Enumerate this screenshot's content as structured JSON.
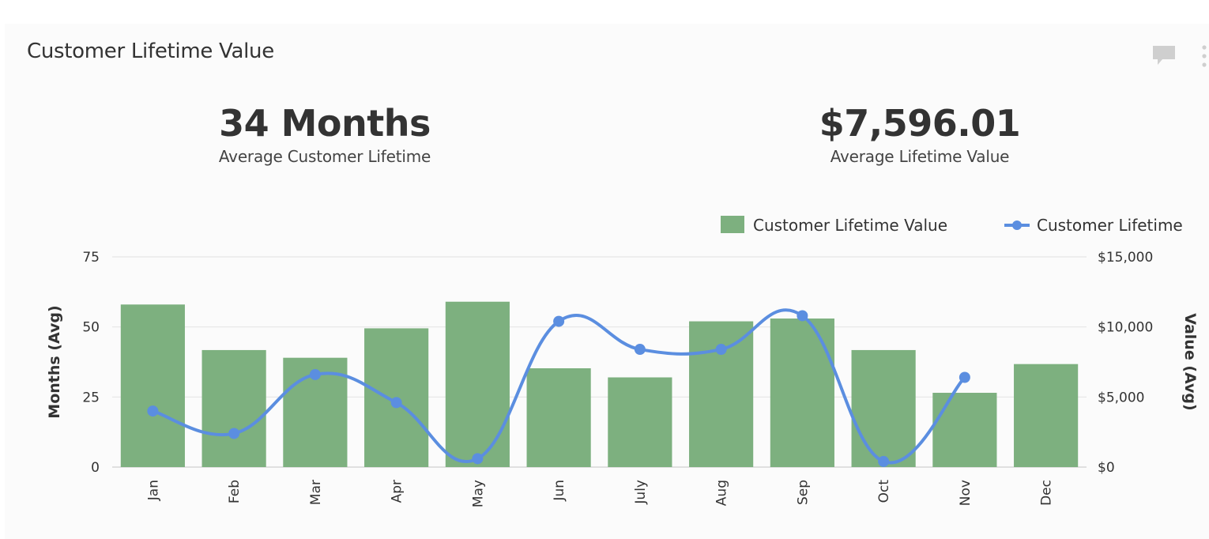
{
  "card": {
    "title": "Customer Lifetime Value",
    "icons": {
      "comment": "comment-icon",
      "more": "more-vertical-icon"
    }
  },
  "kpis": [
    {
      "value": "34 Months",
      "label": "Average Customer Lifetime"
    },
    {
      "value": "$7,596.01",
      "label": "Average Lifetime Value"
    }
  ],
  "colors": {
    "bar": "#7db07f",
    "line": "#5b8ee0",
    "grid": "#e6e6e6",
    "text": "#333333"
  },
  "chart_data": {
    "type": "bar",
    "categories": [
      "Jan",
      "Feb",
      "Mar",
      "Apr",
      "May",
      "Jun",
      "July",
      "Aug",
      "Sep",
      "Oct",
      "Nov",
      "Dec"
    ],
    "left_axis": {
      "label": "Months (Avg)",
      "ticks": [
        0,
        25,
        50,
        75
      ],
      "tick_labels": [
        "0",
        "25",
        "50",
        "75"
      ],
      "range": [
        0,
        75
      ]
    },
    "right_axis": {
      "label": "Value (Avg)",
      "ticks": [
        0,
        5000,
        10000,
        15000
      ],
      "tick_labels": [
        "$0",
        "$5,000",
        "$10,000",
        "$15,000"
      ],
      "range": [
        0,
        15000
      ]
    },
    "series": [
      {
        "name": "Customer Lifetime Value",
        "kind": "bar",
        "axis": "right",
        "values": [
          11600,
          8350,
          7800,
          9900,
          11800,
          7050,
          6400,
          10400,
          10600,
          8350,
          5300,
          7350
        ]
      },
      {
        "name": "Customer Lifetime",
        "kind": "line",
        "axis": "left",
        "values": [
          20,
          12,
          33,
          23,
          3,
          52,
          42,
          42,
          54,
          2,
          32,
          null
        ]
      }
    ],
    "legend_position": "top-right",
    "grid": true
  }
}
